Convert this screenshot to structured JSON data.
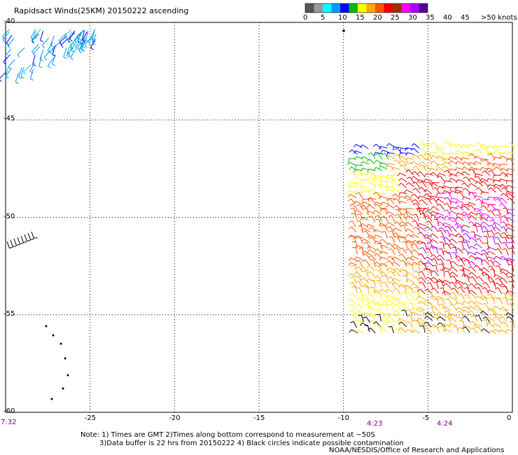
{
  "title": "Rapidsact Winds(25KM) 20150222 ascending",
  "legend": {
    "unit_label": ">50 knots",
    "ticks": [
      "0",
      "5",
      "10",
      "15",
      "20",
      "25",
      "30",
      "35",
      "40",
      "45"
    ],
    "colors": [
      "#555555",
      "#999999",
      "#00ffff",
      "#0099ff",
      "#0000ff",
      "#00bb00",
      "#ffff00",
      "#ffaa00",
      "#ff5500",
      "#ee0000",
      "#993300",
      "#ff00ff",
      "#aa00ff",
      "#550099"
    ]
  },
  "axes": {
    "lon_labels": [
      "-25",
      "-20",
      "-15",
      "-10",
      "-5",
      "0"
    ],
    "lat_labels": [
      "-40",
      "-45",
      "-50",
      "-55",
      "-60"
    ],
    "xlim": [
      -30,
      0
    ],
    "ylim": [
      -60,
      -40
    ]
  },
  "pass_times": [
    "7:32",
    "4:23",
    "4:24"
  ],
  "notes": [
    "Note: 1) Times are GMT 2)Times along bottom correspond to measurement at ~50S",
    "3)Data buffer is 22 hrs from 20150222 4) Black circles indicate possible contamination"
  ],
  "credit": "NOAA/NESDIS/Office of Research and Applications"
}
